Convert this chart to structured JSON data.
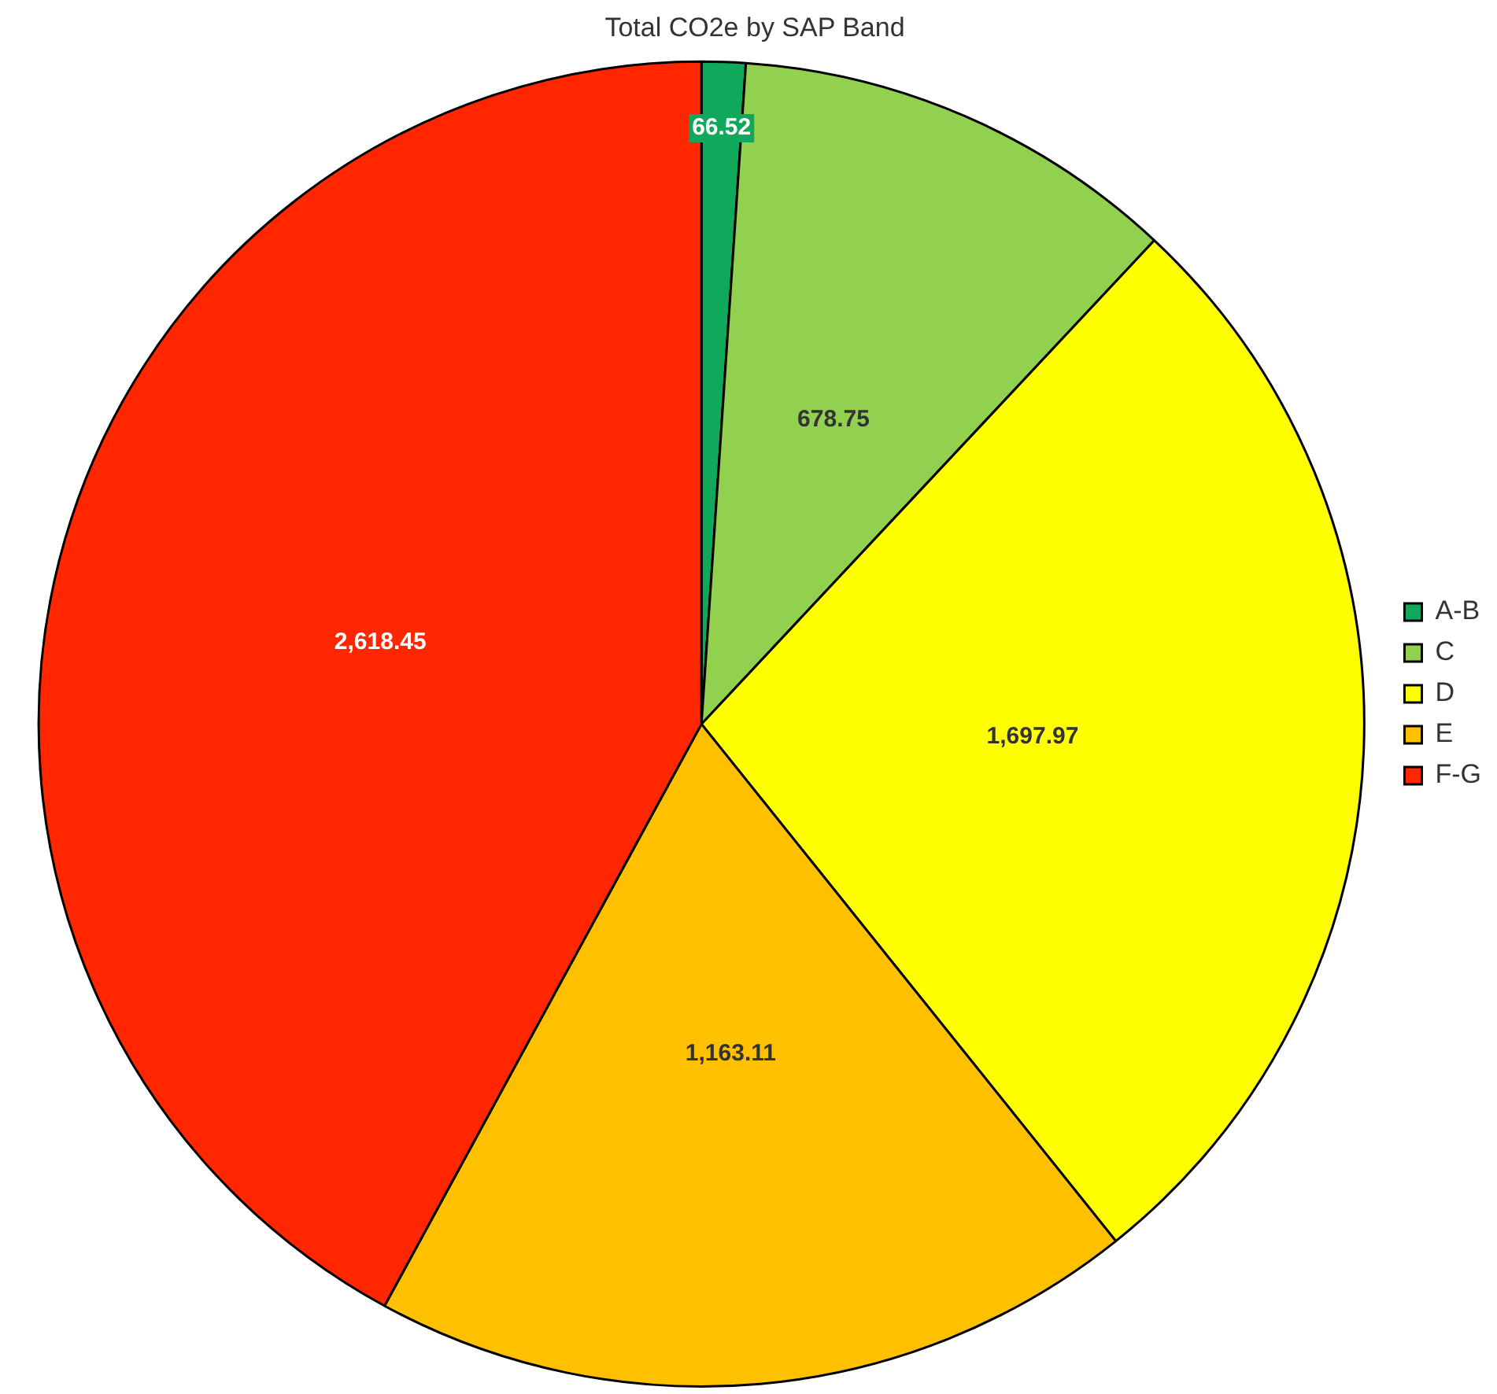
{
  "chart_data": {
    "type": "pie",
    "title": "Total CO2e by SAP Band",
    "categories": [
      "A-B",
      "C",
      "D",
      "E",
      "F-G"
    ],
    "values": [
      66.52,
      678.75,
      1697.97,
      1163.11,
      2618.45
    ],
    "colors": [
      "#10a85a",
      "#92d050",
      "#ffff00",
      "#ffc000",
      "#ff2600"
    ],
    "value_labels": [
      "66.52",
      "678.75",
      "1,697.97",
      "1,163.11",
      "2,618.45"
    ],
    "legend": "right"
  }
}
